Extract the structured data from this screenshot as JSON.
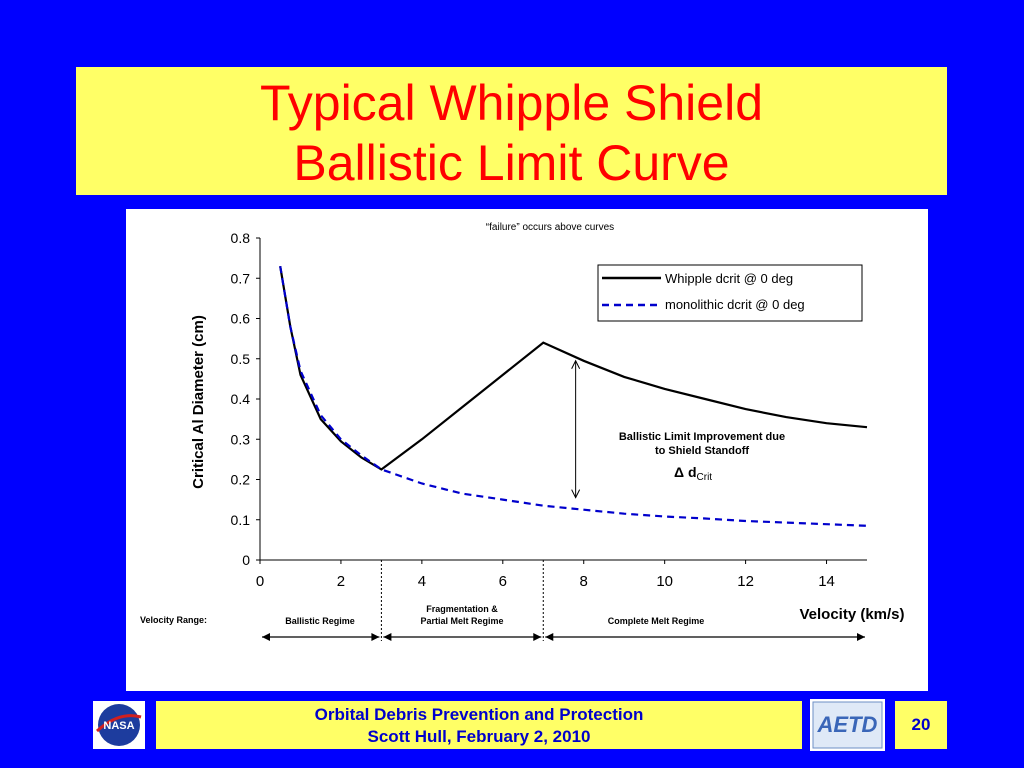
{
  "slide": {
    "title_line1": "Typical Whipple Shield",
    "title_line2": "Ballistic Limit Curve",
    "footer_line1": "Orbital Debris Prevention and Protection",
    "footer_line2": "Scott Hull, February 2, 2010",
    "page_number": "20",
    "logo_left": "NASA",
    "logo_right": "AETD",
    "colors": {
      "background": "#0000ff",
      "title_box": "#ffff66",
      "title_text": "#ff0000",
      "footer_text": "#0000cc"
    }
  },
  "chart_data": {
    "type": "line",
    "title": "“failure” occurs above curves",
    "xlabel": "Velocity (km/s)",
    "ylabel": "Critical Al Diameter (cm)",
    "xlim": [
      0,
      15
    ],
    "ylim": [
      0,
      0.8
    ],
    "x_ticks": [
      "0",
      "2",
      "4",
      "6",
      "8",
      "10",
      "12",
      "14"
    ],
    "y_ticks": [
      "0",
      "0.1",
      "0.2",
      "0.3",
      "0.4",
      "0.5",
      "0.6",
      "0.7",
      "0.8"
    ],
    "legend_position": "top-right",
    "series": [
      {
        "name": "Whipple dcrit @ 0 deg",
        "style": "solid",
        "color": "#000000",
        "points": [
          [
            0.5,
            0.73
          ],
          [
            0.75,
            0.58
          ],
          [
            1.0,
            0.46
          ],
          [
            1.5,
            0.35
          ],
          [
            2.0,
            0.295
          ],
          [
            2.5,
            0.255
          ],
          [
            3.0,
            0.225
          ],
          [
            4.0,
            0.3
          ],
          [
            5.0,
            0.38
          ],
          [
            6.0,
            0.46
          ],
          [
            7.0,
            0.54
          ],
          [
            8.0,
            0.495
          ],
          [
            9.0,
            0.455
          ],
          [
            10.0,
            0.425
          ],
          [
            11.0,
            0.4
          ],
          [
            12.0,
            0.375
          ],
          [
            13.0,
            0.355
          ],
          [
            14.0,
            0.34
          ],
          [
            15.0,
            0.33
          ]
        ]
      },
      {
        "name": "monolithic dcrit @ 0 deg",
        "style": "dashed",
        "color": "#0000cc",
        "points": [
          [
            0.5,
            0.73
          ],
          [
            0.75,
            0.58
          ],
          [
            1.0,
            0.47
          ],
          [
            1.5,
            0.36
          ],
          [
            2.0,
            0.3
          ],
          [
            2.5,
            0.26
          ],
          [
            3.0,
            0.225
          ],
          [
            4.0,
            0.19
          ],
          [
            5.0,
            0.165
          ],
          [
            6.0,
            0.15
          ],
          [
            7.0,
            0.135
          ],
          [
            8.0,
            0.125
          ],
          [
            9.0,
            0.115
          ],
          [
            10.0,
            0.108
          ],
          [
            11.0,
            0.103
          ],
          [
            12.0,
            0.097
          ],
          [
            13.0,
            0.093
          ],
          [
            14.0,
            0.089
          ],
          [
            15.0,
            0.085
          ]
        ]
      }
    ],
    "annotation": {
      "line1": "Ballistic Limit Improvement due",
      "line2": "to Shield Standoff",
      "delta_symbol": "Δ d",
      "delta_subscript": "Crit",
      "arrow_x": 7.8,
      "arrow_y_range": [
        0.155,
        0.495
      ]
    },
    "regimes": {
      "label": "Velocity Range:",
      "boundaries_x": [
        0,
        3,
        7,
        15
      ],
      "names": [
        "Ballistic Regime",
        "Fragmentation &",
        "Partial Melt Regime",
        "Complete Melt Regime"
      ]
    }
  }
}
